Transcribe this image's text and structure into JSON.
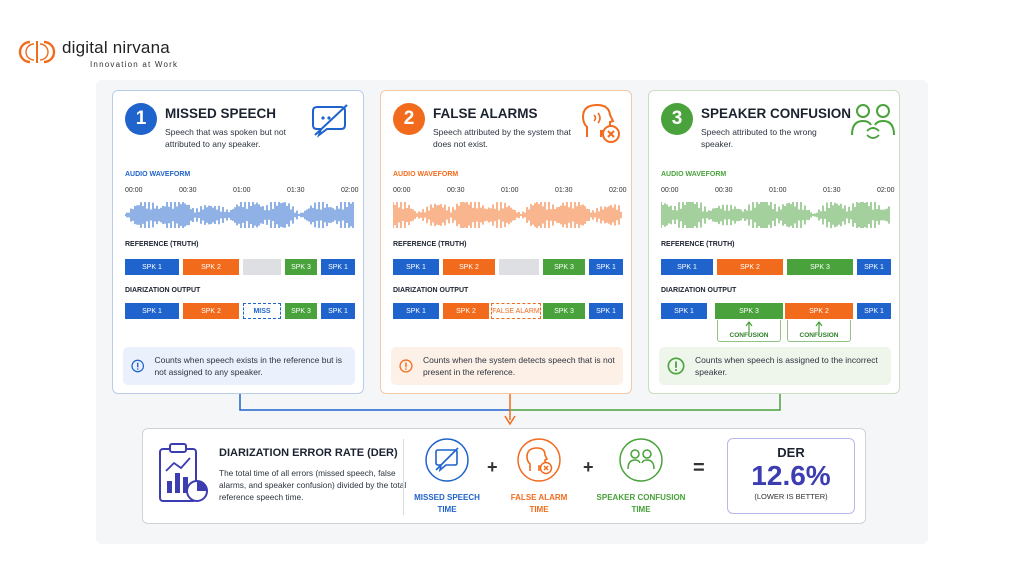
{
  "brand": {
    "name": "digital nirvana",
    "tagline": "Innovation at Work",
    "color": "#ef6c1a"
  },
  "colors": {
    "blue": "#1f63cc",
    "orange": "#f26b1d",
    "green": "#49a23b",
    "purple": "#3c3db1"
  },
  "labels": {
    "waveform": "AUDIO WAVEFORM",
    "reference": "REFERENCE (TRUTH)",
    "output": "DIARIZATION OUTPUT"
  },
  "times": [
    "00:00",
    "00:30",
    "01:00",
    "01:30",
    "02:00"
  ],
  "panels": [
    {
      "num": "1",
      "title": "MISSED SPEECH",
      "desc": "Speech that was spoken but not attributed to any speaker.",
      "icon": "chat-slash-icon",
      "reference": [
        "SPK 1",
        "SPK 2",
        "",
        "SPK 3",
        "SPK 1"
      ],
      "output": [
        "SPK 1",
        "SPK 2",
        "MISS",
        "SPK 3",
        "SPK 1"
      ],
      "note": "Counts when speech exists in the reference but is not assigned to any speaker."
    },
    {
      "num": "2",
      "title": "FALSE ALARMS",
      "desc": "Speech attributed by the system that does not exist.",
      "icon": "head-speaking-x-icon",
      "reference": [
        "SPK 1",
        "SPK 2",
        "",
        "SPK 3",
        "SPK 1"
      ],
      "output": [
        "SPK 1",
        "SPK 2",
        "FALSE ALARM",
        "SPK 3",
        "SPK 1"
      ],
      "note": "Counts when the system detects speech that is not present in the reference."
    },
    {
      "num": "3",
      "title": "SPEAKER CONFUSION",
      "desc": "Speech attributed to the wrong speaker.",
      "icon": "people-swap-icon",
      "reference": [
        "SPK 1",
        "SPK 2",
        "SPK 3",
        "SPK 1"
      ],
      "output": [
        "SPK 1",
        "SPK 3",
        "SPK 2",
        "SPK 1"
      ],
      "confusion": [
        "CONFUSION",
        "CONFUSION"
      ],
      "note": "Counts when speech is assigned to the incorrect speaker."
    }
  ],
  "summary": {
    "title": "DIARIZATION ERROR RATE (DER)",
    "desc": "The total time of all errors (missed speech, false alarms, and speaker confusion) divided by the total reference speech time.",
    "terms": [
      {
        "line1": "MISSED SPEECH",
        "line2": "TIME"
      },
      {
        "line1": "FALSE ALARM",
        "line2": "TIME"
      },
      {
        "line1": "SPEAKER CONFUSION",
        "line2": "TIME"
      }
    ],
    "plus": "+",
    "equals": "=",
    "der_label": "DER",
    "der_value": "12.6%",
    "der_note": "(LOWER IS BETTER)"
  }
}
